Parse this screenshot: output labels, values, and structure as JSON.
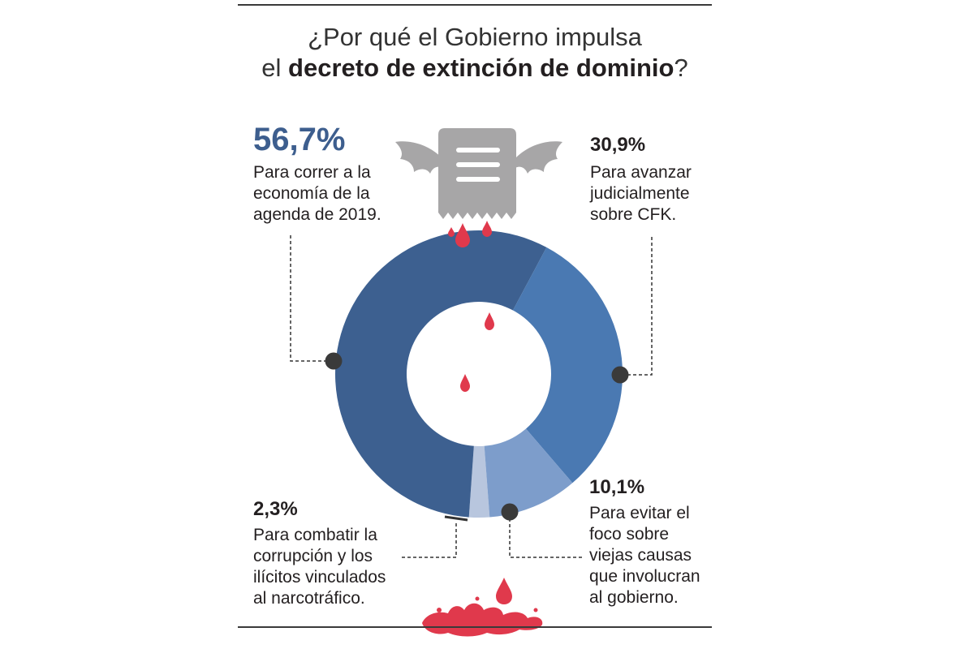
{
  "title": {
    "line1": "¿Por qué el Gobierno impulsa",
    "line2_prefix": "el ",
    "line2_bold": "decreto de extinción de dominio",
    "line2_suffix": "?"
  },
  "labels": {
    "economia": {
      "pct": "56,7%",
      "text": "Para correr a la\neconomía de la\nagenda de 2019."
    },
    "cfk": {
      "pct": "30,9%",
      "text": "Para avanzar\njudicialmente\nsobre CFK."
    },
    "foco": {
      "pct": "10,1%",
      "text": "Para evitar el\nfoco sobre\nviejas causas\nque involucran\nal gobierno."
    },
    "corrupcion": {
      "pct": "2,3%",
      "text": "Para combatir la\ncorrupción y los\nilícitos vinculados\nal narcotráfico."
    }
  },
  "colors": {
    "economia": "#3d6090",
    "cfk": "#4a79b2",
    "foco": "#7d9dcb",
    "corrupcion": "#b8c6de",
    "blood": "#e0394c",
    "icon": "#a7a6a7",
    "marker": "#3a3a3a"
  },
  "icons": [
    "document-icon",
    "bat-wings-icon",
    "blood-drop-icon",
    "blood-splash-icon"
  ],
  "chart_data": {
    "type": "pie",
    "style": "donut",
    "categories": [
      "Para correr a la economía de la agenda de 2019.",
      "Para avanzar judicialmente sobre CFK.",
      "Para evitar el foco sobre viejas causas que involucran al gobierno.",
      "Para combatir la corrupción y los ilícitos vinculados al narcotráfico."
    ],
    "values": [
      56.7,
      30.9,
      10.1,
      2.3
    ],
    "value_labels": [
      "56,7%",
      "30,9%",
      "10,1%",
      "2,3%"
    ],
    "colors": [
      "#3d6090",
      "#4a79b2",
      "#7d9dcb",
      "#b8c6de"
    ],
    "legend": "none",
    "title": "¿Por qué el Gobierno impulsa el decreto de extinción de dominio?"
  }
}
